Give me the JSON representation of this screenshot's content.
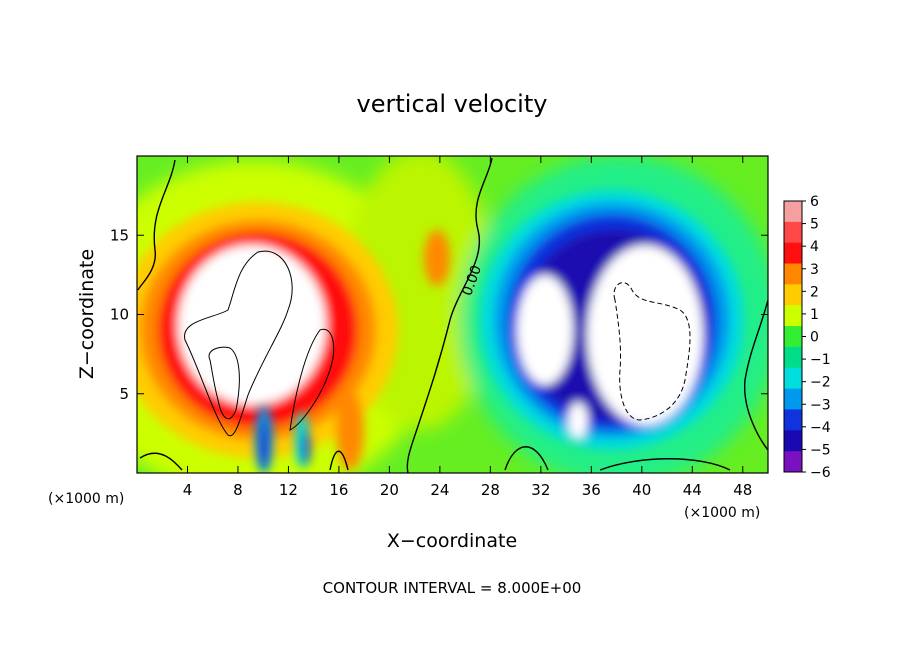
{
  "chart_data": {
    "type": "heatmap",
    "title": "vertical velocity",
    "xlabel": "X−coordinate",
    "ylabel": "Z−coordinate",
    "x_unit_label_left": "(×1000 m)",
    "x_unit_label_right": "(×1000 m)",
    "xlim": [
      0,
      50
    ],
    "ylim": [
      0,
      20
    ],
    "x_ticks": [
      4,
      8,
      12,
      16,
      20,
      24,
      28,
      32,
      36,
      40,
      44,
      48
    ],
    "y_ticks": [
      5,
      10,
      15
    ],
    "colorbar": {
      "levels": [
        6,
        5,
        4,
        3,
        2,
        1,
        0,
        -1,
        -2,
        -3,
        -4,
        -5,
        -6
      ],
      "labels": [
        "6",
        "5",
        "4",
        "3",
        "2",
        "1",
        "0",
        "−1",
        "−2",
        "−3",
        "−4",
        "−5",
        "−6"
      ],
      "colors": [
        "#f5a0a0",
        "#ff4848",
        "#ff1010",
        "#ff8800",
        "#ffcc00",
        "#ccff00",
        "#33ee33",
        "#00dd88",
        "#00dddd",
        "#0099ee",
        "#1133dd",
        "#1a08b0",
        "#7a10c0"
      ]
    },
    "contour_label": "0.00",
    "footer": "CONTOUR INTERVAL = 8.000E+00",
    "features": [
      {
        "kind": "updraft",
        "x": [
          5,
          14
        ],
        "z": [
          2,
          14
        ],
        "peak": "> 6"
      },
      {
        "kind": "downdraft",
        "x": [
          30,
          44
        ],
        "z": [
          3,
          14
        ],
        "peak": "< −6"
      }
    ]
  }
}
